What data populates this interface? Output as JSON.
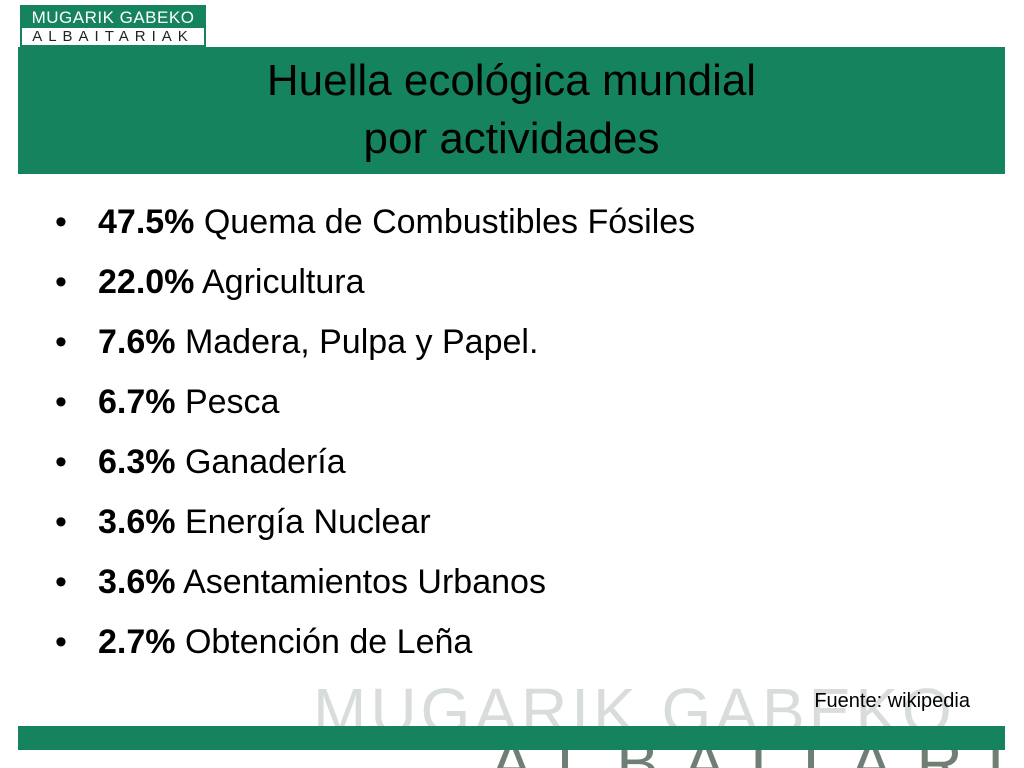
{
  "logo": {
    "line1": "MUGARIK GABEKO",
    "line2": "ALBAITARIAK"
  },
  "title": {
    "line1": "Huella ecológica mundial",
    "line2": "por actividades"
  },
  "items": [
    {
      "bullet": "•",
      "pct": "47.5%",
      "label": "Quema de Combustibles Fósiles"
    },
    {
      "bullet": "•",
      "pct": "22.0%",
      "label": "Agricultura"
    },
    {
      "bullet": "•",
      "pct": "7.6%",
      "label": "Madera, Pulpa y Papel."
    },
    {
      "bullet": "•",
      "pct": "6.7%",
      "label": "Pesca"
    },
    {
      "bullet": "•",
      "pct": "6.3%",
      "label": "Ganadería"
    },
    {
      "bullet": "•",
      "pct": "3.6%",
      "label": "Energía Nuclear"
    },
    {
      "bullet": "•",
      "pct": "3.6%",
      "label": "Asentamientos Urbanos"
    },
    {
      "bullet": "•",
      "pct": "2.7%",
      "label": "Obtención de Leña"
    }
  ],
  "source": "Fuente: wikipedia",
  "colors": {
    "brand_green": "#15845e"
  }
}
